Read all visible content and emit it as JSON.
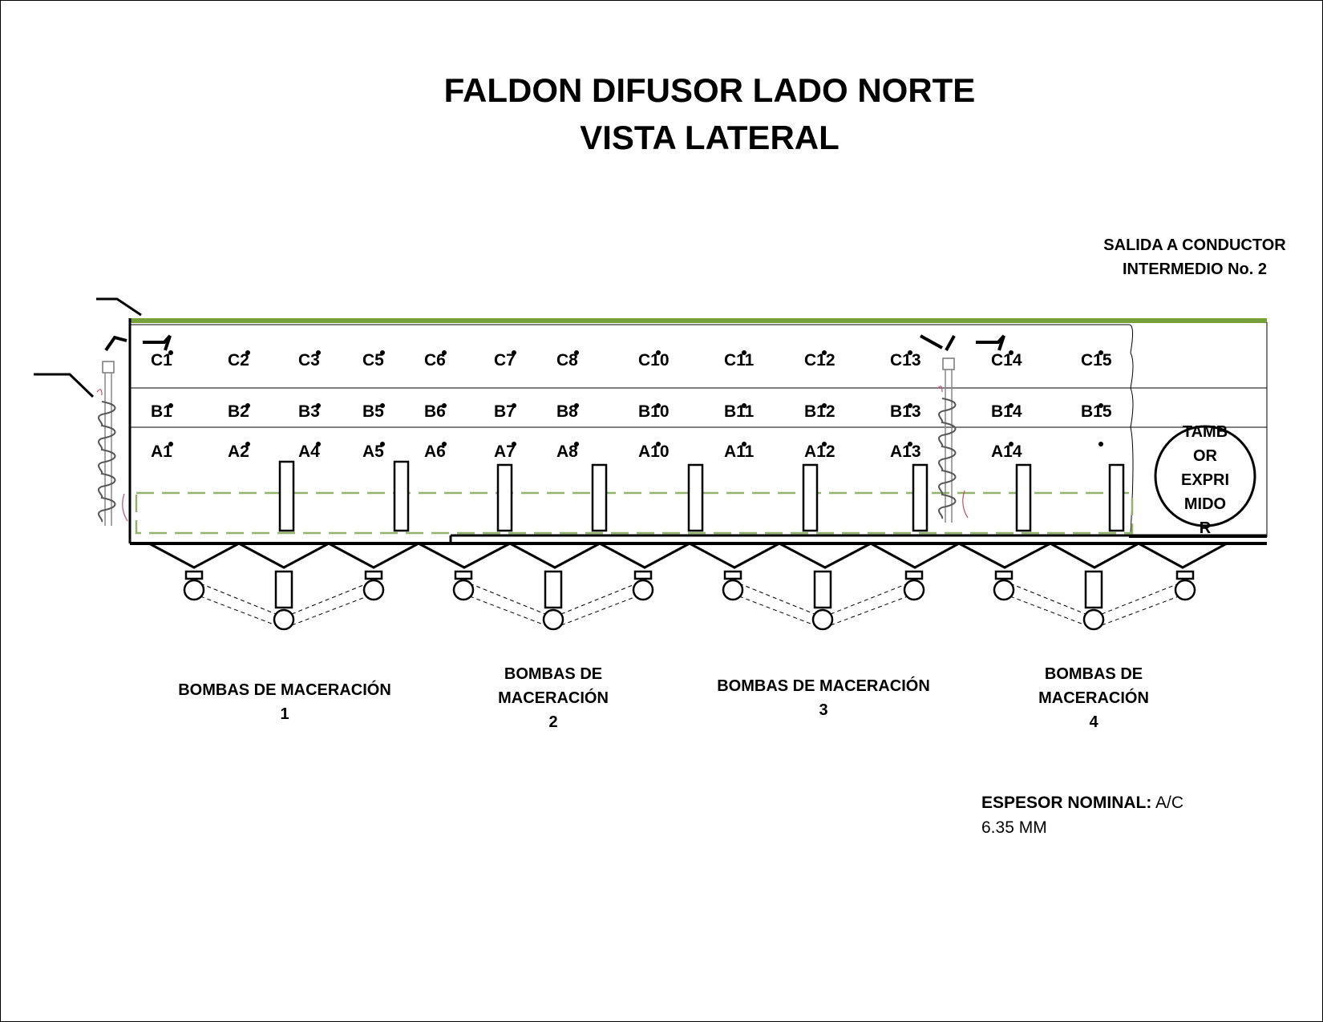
{
  "title": {
    "line1": "FALDON DIFUSOR LADO NORTE",
    "line2": "VISTA LATERAL"
  },
  "outlet": {
    "line1": "SALIDA A CONDUCTOR",
    "line2": "INTERMEDIO No. 2"
  },
  "rows": {
    "C": [
      "C1",
      "C2",
      "C3",
      "C5",
      "C6",
      "C7",
      "C8",
      "C10",
      "C11",
      "C12",
      "C13",
      "C14",
      "C15"
    ],
    "B": [
      "B1",
      "B2",
      "B3",
      "B5",
      "B6",
      "B7",
      "B8",
      "B10",
      "B11",
      "B12",
      "B13",
      "B14",
      "B15"
    ],
    "A": [
      "A1",
      "A2",
      "A4",
      "A5",
      "A6",
      "A7",
      "A8",
      "A10",
      "A11",
      "A12",
      "A13",
      "A14",
      ""
    ]
  },
  "drum": {
    "lines": [
      "TAMB",
      "OR",
      "EXPRI",
      "MIDO",
      "R"
    ]
  },
  "pumps": [
    {
      "line1": "BOMBAS DE MACERACIÓN",
      "line2": "",
      "num": "1"
    },
    {
      "line1": "BOMBAS DE",
      "line2": "MACERACIÓN",
      "num": "2"
    },
    {
      "line1": "BOMBAS DE MACERACIÓN",
      "line2": "",
      "num": "3"
    },
    {
      "line1": "BOMBAS DE",
      "line2": "MACERACIÓN",
      "num": "4"
    }
  ],
  "thickness": {
    "label": "ESPESOR NOMINAL:",
    "value": "A/C",
    "value2": "6.35 MM"
  },
  "colors": {
    "green": "#77a03a",
    "dash_green": "#93b36a",
    "line": "#000000"
  }
}
